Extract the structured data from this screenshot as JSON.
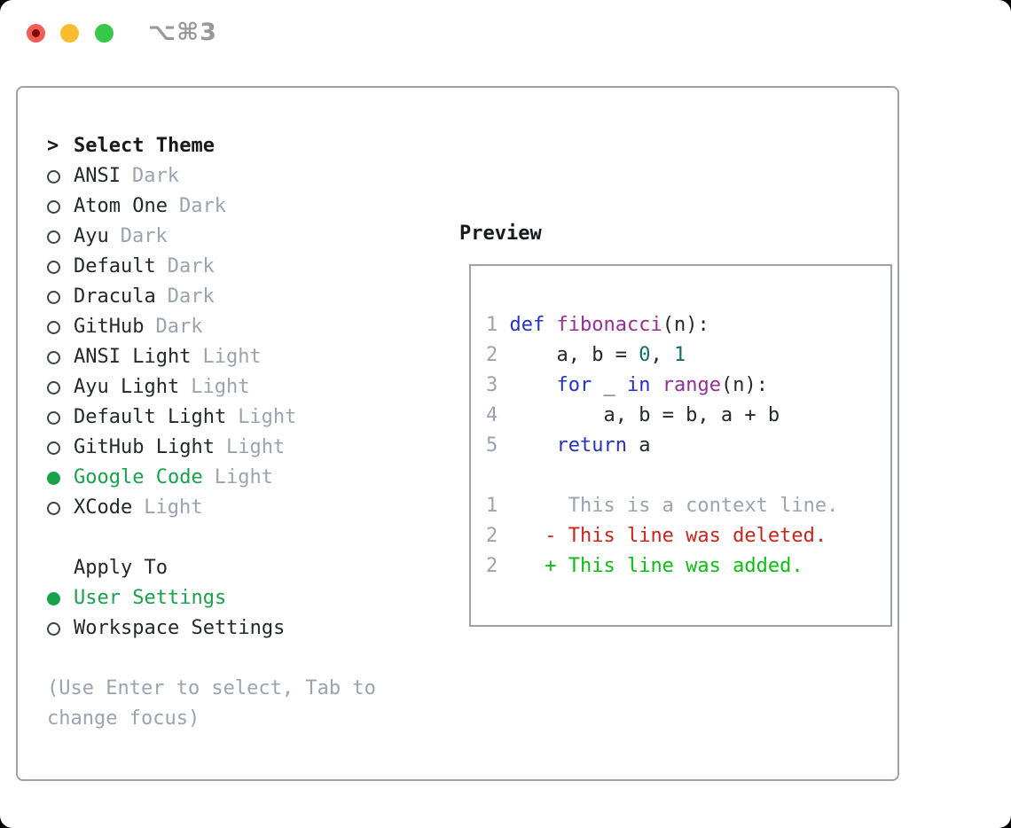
{
  "window": {
    "title": "⌥⌘3"
  },
  "colors": {
    "selected_green": "#16a34a",
    "diff_added_green": "#0bbf12",
    "diff_deleted_red": "#cb241a",
    "keyword_blue": "#2531c6",
    "function_purple": "#972d97",
    "number_teal": "#0e6e6e",
    "muted_gray": "#9aa4b0",
    "border_gray": "#9aa2ad",
    "traffic_red": "#f35d55",
    "traffic_yellow": "#f7bd2f",
    "traffic_green": "#38c848"
  },
  "picker": {
    "prompt": ">",
    "title": "Select Theme",
    "themes": [
      {
        "name": "ANSI",
        "variant": "Dark",
        "selected": false
      },
      {
        "name": "Atom One",
        "variant": "Dark",
        "selected": false
      },
      {
        "name": "Ayu",
        "variant": "Dark",
        "selected": false
      },
      {
        "name": "Default",
        "variant": "Dark",
        "selected": false
      },
      {
        "name": "Dracula",
        "variant": "Dark",
        "selected": false
      },
      {
        "name": "GitHub",
        "variant": "Dark",
        "selected": false
      },
      {
        "name": "ANSI Light",
        "variant": "Light",
        "selected": false
      },
      {
        "name": "Ayu Light",
        "variant": "Light",
        "selected": false
      },
      {
        "name": "Default Light",
        "variant": "Light",
        "selected": false
      },
      {
        "name": "GitHub Light",
        "variant": "Light",
        "selected": false
      },
      {
        "name": "Google Code",
        "variant": "Light",
        "selected": true
      },
      {
        "name": "XCode",
        "variant": "Light",
        "selected": false
      }
    ],
    "apply_to_label": "Apply To",
    "apply_options": [
      {
        "name": "User Settings",
        "selected": true
      },
      {
        "name": "Workspace Settings",
        "selected": false
      }
    ],
    "hint": "(Use Enter to select, Tab to change focus)"
  },
  "preview": {
    "label": "Preview",
    "code": [
      {
        "num": "1",
        "tokens": [
          {
            "t": "def ",
            "c": "kw"
          },
          {
            "t": "fibonacci",
            "c": "fn"
          },
          {
            "t": "(n):",
            "c": "pl"
          }
        ]
      },
      {
        "num": "2",
        "tokens": [
          {
            "t": "    a, b = ",
            "c": "pl"
          },
          {
            "t": "0",
            "c": "num"
          },
          {
            "t": ", ",
            "c": "pl"
          },
          {
            "t": "1",
            "c": "num"
          }
        ]
      },
      {
        "num": "3",
        "tokens": [
          {
            "t": "    ",
            "c": "pl"
          },
          {
            "t": "for",
            "c": "kw"
          },
          {
            "t": " _ ",
            "c": "pl"
          },
          {
            "t": "in",
            "c": "kw"
          },
          {
            "t": " ",
            "c": "pl"
          },
          {
            "t": "range",
            "c": "fn"
          },
          {
            "t": "(n):",
            "c": "pl"
          }
        ]
      },
      {
        "num": "4",
        "tokens": [
          {
            "t": "        a, b = b, a + b",
            "c": "pl"
          }
        ]
      },
      {
        "num": "5",
        "tokens": [
          {
            "t": "    ",
            "c": "pl"
          },
          {
            "t": "return",
            "c": "kw"
          },
          {
            "t": " a",
            "c": "pl"
          }
        ]
      }
    ],
    "diff": [
      {
        "num": "1",
        "marker": " ",
        "text": "This is a context line.",
        "kind": "context"
      },
      {
        "num": "2",
        "marker": "-",
        "text": "This line was deleted.",
        "kind": "deleted"
      },
      {
        "num": "2",
        "marker": "+",
        "text": "This line was added.",
        "kind": "added"
      }
    ]
  }
}
